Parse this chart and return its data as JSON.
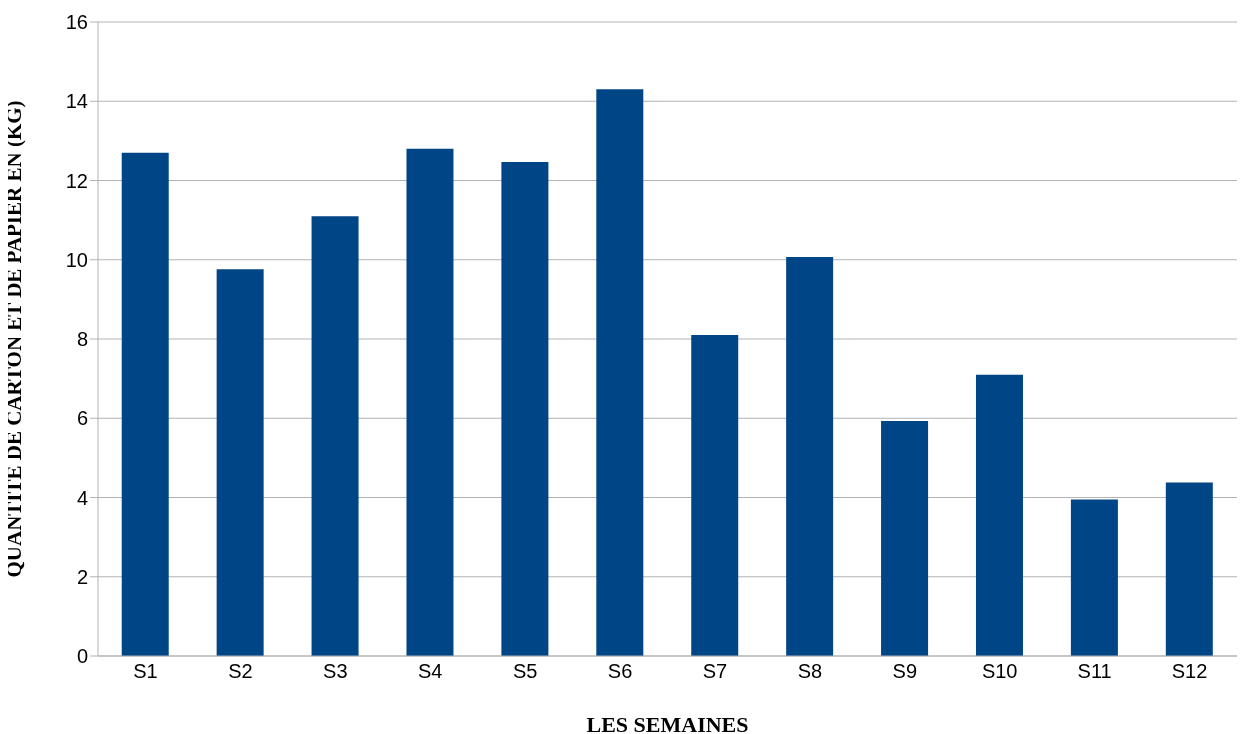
{
  "chart_data": {
    "type": "bar",
    "xlabel": "LES SEMAINES",
    "ylabel": "QUANTITE DE CARTON ET DE PAPIER EN (KG)",
    "categories": [
      "S1",
      "S2",
      "S3",
      "S4",
      "S5",
      "S6",
      "S7",
      "S8",
      "S9",
      "S10",
      "S11",
      "S12"
    ],
    "values": [
      12.7,
      9.76,
      11.1,
      12.8,
      12.47,
      14.3,
      8.1,
      10.07,
      5.93,
      7.1,
      3.95,
      4.38
    ],
    "color": "#004586",
    "ylim": [
      0,
      16
    ],
    "yticks": [
      0,
      2,
      4,
      6,
      8,
      10,
      12,
      14,
      16
    ],
    "grid": "y"
  }
}
